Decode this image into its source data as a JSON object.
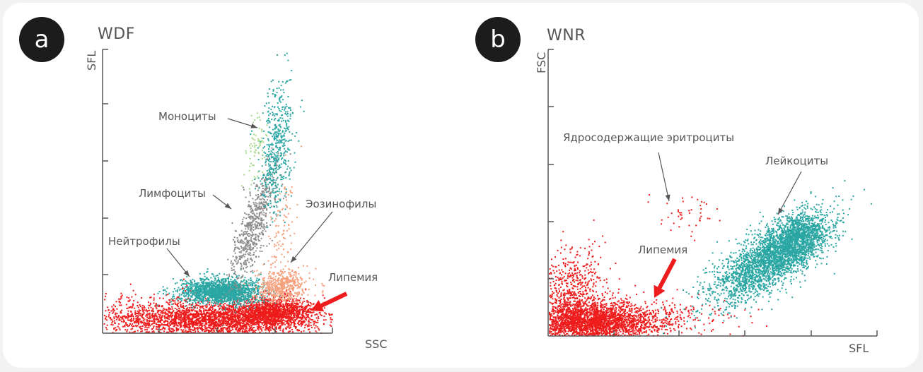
{
  "chart_data": [
    {
      "panel": "a",
      "title": "WDF",
      "type": "scatter",
      "xlabel": "SSC",
      "ylabel": "SFL",
      "clusters": [
        {
          "name": "Моноциты",
          "color": "#2aa6a3"
        },
        {
          "name": "Лимфоциты",
          "color": "#8c8c8c"
        },
        {
          "name": "Нейтрофилы",
          "color": "#2aa6a3"
        },
        {
          "name": "Эозинофилы",
          "color": "#f4a07c"
        },
        {
          "name": "Липемия",
          "color": "#ee1c1c"
        }
      ],
      "annotations": [
        "Моноциты",
        "Лимфоциты",
        "Нейтрофилы",
        "Эозинофилы",
        "Липемия"
      ]
    },
    {
      "panel": "b",
      "title": "WNR",
      "type": "scatter",
      "xlabel": "SFL",
      "ylabel": "FSC",
      "clusters": [
        {
          "name": "Липемия",
          "color": "#ee1c1c"
        },
        {
          "name": "Ядросодержащие эритроциты",
          "color": "#ee1c1c"
        },
        {
          "name": "Лейкоциты",
          "color": "#2aa6a3"
        }
      ],
      "annotations": [
        "Ядросодержащие эритроциты",
        "Лейкоциты",
        "Липемия"
      ]
    }
  ],
  "labels": {
    "a_badge": "a",
    "a_title": "WDF",
    "a_y": "SFL",
    "a_x": "SSC",
    "monocytes": "Моноциты",
    "lymphocytes": "Лимфоциты",
    "neutrophils": "Нейтрофилы",
    "eosinophils": "Эозинофилы",
    "lipemia_a": "Липемия",
    "b_badge": "b",
    "b_title": "WNR",
    "b_y": "FSC",
    "b_x": "SFL",
    "nrbc": "Ядросодержащие эритроциты",
    "leukocytes": "Лейкоциты",
    "lipemia_b": "Липемия"
  }
}
